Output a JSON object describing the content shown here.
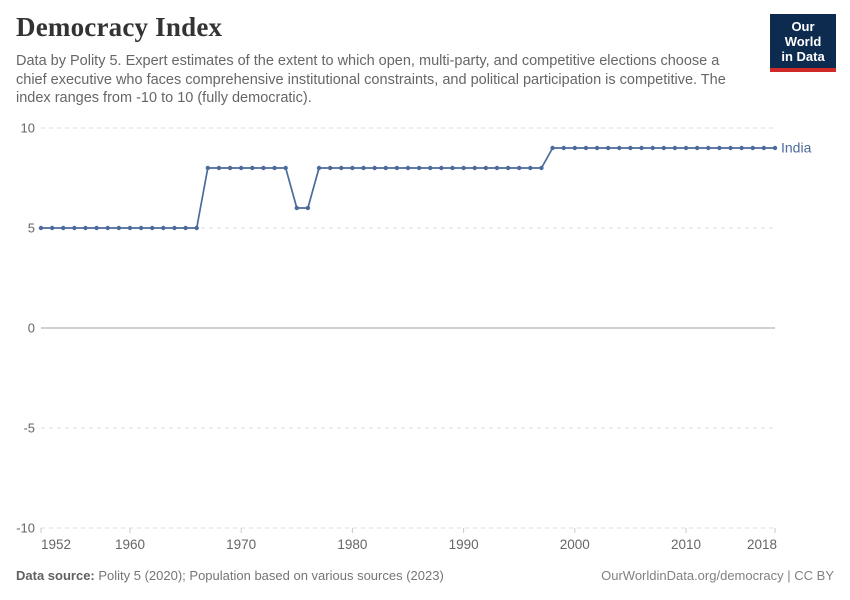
{
  "header": {
    "title": "Democracy Index",
    "subtitle_lines": [
      "Data by Polity 5. Expert estimates of the extent to which open, multi-party, and competitive elections choose a",
      "chief executive who faces comprehensive institutional constraints, and political participation is competitive. The",
      "index ranges from -10 to 10 (fully democratic)."
    ],
    "logo": {
      "line1": "Our World",
      "line2": "in Data",
      "bg_color": "#0c2b4e",
      "accent_color": "#cf2a28"
    }
  },
  "chart_data": {
    "type": "line",
    "title": "Democracy Index",
    "entity_label": "India",
    "x_start": 1952,
    "x_end": 2018,
    "values": [
      5,
      5,
      5,
      5,
      5,
      5,
      5,
      5,
      5,
      5,
      5,
      5,
      5,
      5,
      5,
      8,
      8,
      8,
      8,
      8,
      8,
      8,
      8,
      6,
      6,
      8,
      8,
      8,
      8,
      8,
      8,
      8,
      8,
      8,
      8,
      8,
      8,
      8,
      8,
      8,
      8,
      8,
      8,
      8,
      8,
      8,
      9,
      9,
      9,
      9,
      9,
      9,
      9,
      9,
      9,
      9,
      9,
      9,
      9,
      9,
      9,
      9,
      9,
      9,
      9,
      9,
      9
    ],
    "value_runs": [
      {
        "from": 1952,
        "to": 1966,
        "value": 5
      },
      {
        "from": 1967,
        "to": 1974,
        "value": 8
      },
      {
        "from": 1975,
        "to": 1976,
        "value": 6
      },
      {
        "from": 1977,
        "to": 1997,
        "value": 8
      },
      {
        "from": 1998,
        "to": 2018,
        "value": 9
      }
    ],
    "ylim": [
      -10,
      10
    ],
    "yticks": [
      10,
      5,
      0,
      -5,
      -10
    ],
    "xticks": [
      1952,
      1960,
      1970,
      1980,
      1990,
      2000,
      2010,
      2018
    ],
    "line_color": "#4C6A9C",
    "grid": true,
    "legend_position": "line-end-label"
  },
  "footer": {
    "source_label": "Data source:",
    "source_text": " Polity 5 (2020); Population based on various sources (2023)",
    "credit": "OurWorldinData.org/democracy | CC BY"
  }
}
